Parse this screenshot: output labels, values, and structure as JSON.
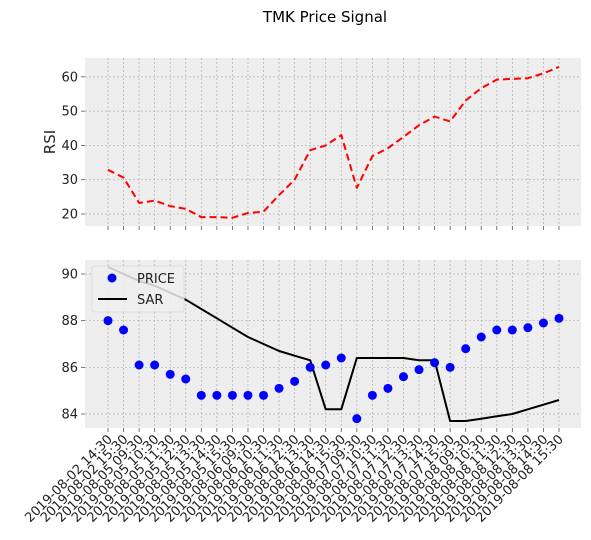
{
  "title": "TMK Price Signal",
  "colors": {
    "rsi": "#ff0000",
    "price": "#0000ff",
    "sar": "#000000",
    "panel_bg": "#eeeeee",
    "grid": "#b0b0b0"
  },
  "chart_data": [
    {
      "type": "line",
      "ylabel": "RSI",
      "ylim": [
        16.5,
        65.5
      ],
      "yticks": [
        20,
        30,
        40,
        50,
        60
      ],
      "grid": true,
      "series": [
        {
          "style": "dashed",
          "values": [
            32.9,
            30.6,
            23.2,
            23.9,
            22.3,
            21.5,
            19.1,
            19.1,
            18.9,
            20.3,
            20.7,
            25.5,
            30.0,
            38.6,
            40.0,
            43.0,
            27.6,
            36.9,
            39.2,
            42.5,
            45.9,
            48.4,
            47.0,
            53.1,
            56.7,
            59.2,
            59.4,
            59.6,
            61.0,
            62.9
          ]
        }
      ]
    },
    {
      "type": "scatter",
      "ylim": [
        83.4,
        90.6
      ],
      "yticks": [
        84,
        86,
        88,
        90
      ],
      "grid": true,
      "legend_position": "top-left",
      "x_tick_labels": [
        "2019-08-02 14:30",
        "2019-08-02 15:30",
        "2019-08-05 09:30",
        "2019-08-05 10:30",
        "2019-08-05 11:30",
        "2019-08-05 12:30",
        "2019-08-05 13:30",
        "2019-08-05 14:30",
        "2019-08-05 15:30",
        "2019-08-06 09:30",
        "2019-08-06 10:30",
        "2019-08-06 11:30",
        "2019-08-06 12:30",
        "2019-08-06 13:30",
        "2019-08-06 14:30",
        "2019-08-06 15:30",
        "2019-08-07 09:30",
        "2019-08-07 10:30",
        "2019-08-07 11:30",
        "2019-08-07 12:30",
        "2019-08-07 13:30",
        "2019-08-07 14:30",
        "2019-08-07 15:30",
        "2019-08-08 09:30",
        "2019-08-08 10:30",
        "2019-08-08 11:30",
        "2019-08-08 12:30",
        "2019-08-08 13:30",
        "2019-08-08 14:30",
        "2019-08-08 15:30"
      ],
      "series": [
        {
          "name": "PRICE",
          "kind": "points",
          "values": [
            88.0,
            87.6,
            86.1,
            86.1,
            85.7,
            85.5,
            84.8,
            84.8,
            84.8,
            84.8,
            84.8,
            85.1,
            85.4,
            86.0,
            86.1,
            86.4,
            83.8,
            84.8,
            85.1,
            85.6,
            85.9,
            86.2,
            86.0,
            86.8,
            87.3,
            87.6,
            87.6,
            87.7,
            87.9,
            88.1
          ]
        },
        {
          "name": "SAR",
          "kind": "line",
          "values": [
            90.3,
            90.0,
            89.7,
            89.5,
            89.2,
            88.9,
            88.5,
            88.1,
            87.7,
            87.3,
            87.0,
            86.7,
            86.5,
            86.3,
            84.2,
            84.2,
            86.4,
            86.4,
            86.4,
            86.4,
            86.3,
            86.3,
            83.7,
            83.7,
            83.8,
            83.9,
            84.0,
            84.2,
            84.4,
            84.6
          ]
        }
      ]
    }
  ]
}
